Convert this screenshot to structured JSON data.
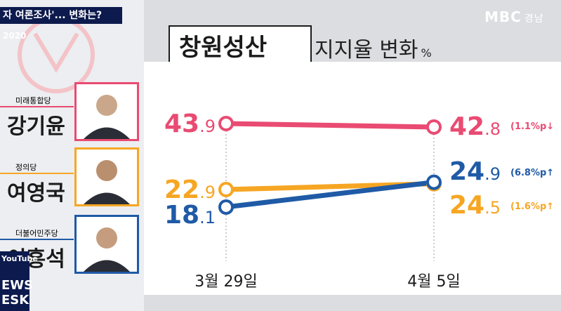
{
  "banner": {
    "text": "자 여론조사'... 변화는?",
    "year": "2020"
  },
  "logo": {
    "brand": "MBC",
    "region": "경남"
  },
  "title": {
    "district": "창원성산",
    "subtitle": "지지율 변화",
    "unit": "%"
  },
  "candidates": [
    {
      "party": "미래통합당",
      "name": "강기윤",
      "color": "#e94b72"
    },
    {
      "party": "정의당",
      "name": "여영국",
      "color": "#f6a623"
    },
    {
      "party": "더불어민주당",
      "name": "이흥석",
      "color": "#1f5aa6"
    }
  ],
  "watermark": {
    "line1": "YouTube",
    "line2": "EWS ESK"
  },
  "chart_data": {
    "type": "line",
    "categories": [
      "3월 29일",
      "4월 5일"
    ],
    "series": [
      {
        "values": [
          43.9,
          42.8
        ],
        "color": "#e94b72",
        "change": "(1.1%p↓"
      },
      {
        "values": [
          22.9,
          24.5
        ],
        "color": "#f6a623",
        "change": "(1.6%p↑"
      },
      {
        "values": [
          18.1,
          24.9
        ],
        "color": "#1f5aa6",
        "change": "(6.8%p↑"
      }
    ]
  }
}
